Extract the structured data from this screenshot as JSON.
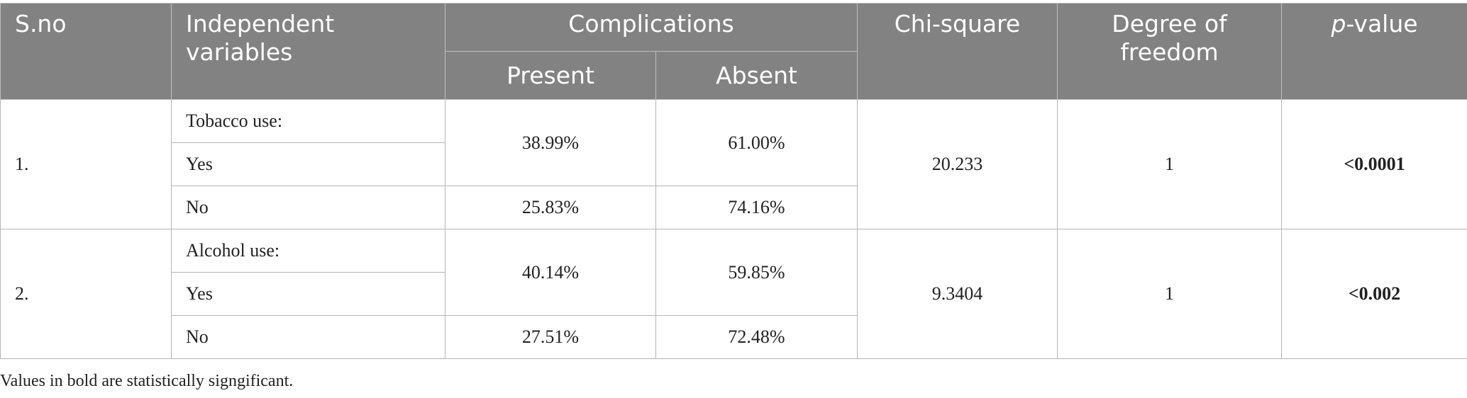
{
  "header": {
    "sno": "S.no",
    "independent_variables": "Independent variables",
    "complications": "Complications",
    "present": "Present",
    "absent": "Absent",
    "chi_square": "Chi-square",
    "degree_of_freedom": "Degree of freedom",
    "p_value_italic": "p",
    "p_value_rest": "-value"
  },
  "rows": [
    {
      "sno": "1.",
      "label": "Tobacco use:",
      "yes_label": "Yes",
      "no_label": "No",
      "yes_present": "38.99%",
      "yes_absent": "61.00%",
      "no_present": "25.83%",
      "no_absent": "74.16%",
      "chi_square": "20.233",
      "dof": "1",
      "p_value": "<0.0001"
    },
    {
      "sno": "2.",
      "label": "Alcohol use:",
      "yes_label": "Yes",
      "no_label": "No",
      "yes_present": "40.14%",
      "yes_absent": "59.85%",
      "no_present": "27.51%",
      "no_absent": "72.48%",
      "chi_square": "9.3404",
      "dof": "1",
      "p_value": "<0.002"
    }
  ],
  "footnote": "Values in bold are statistically signgificant."
}
